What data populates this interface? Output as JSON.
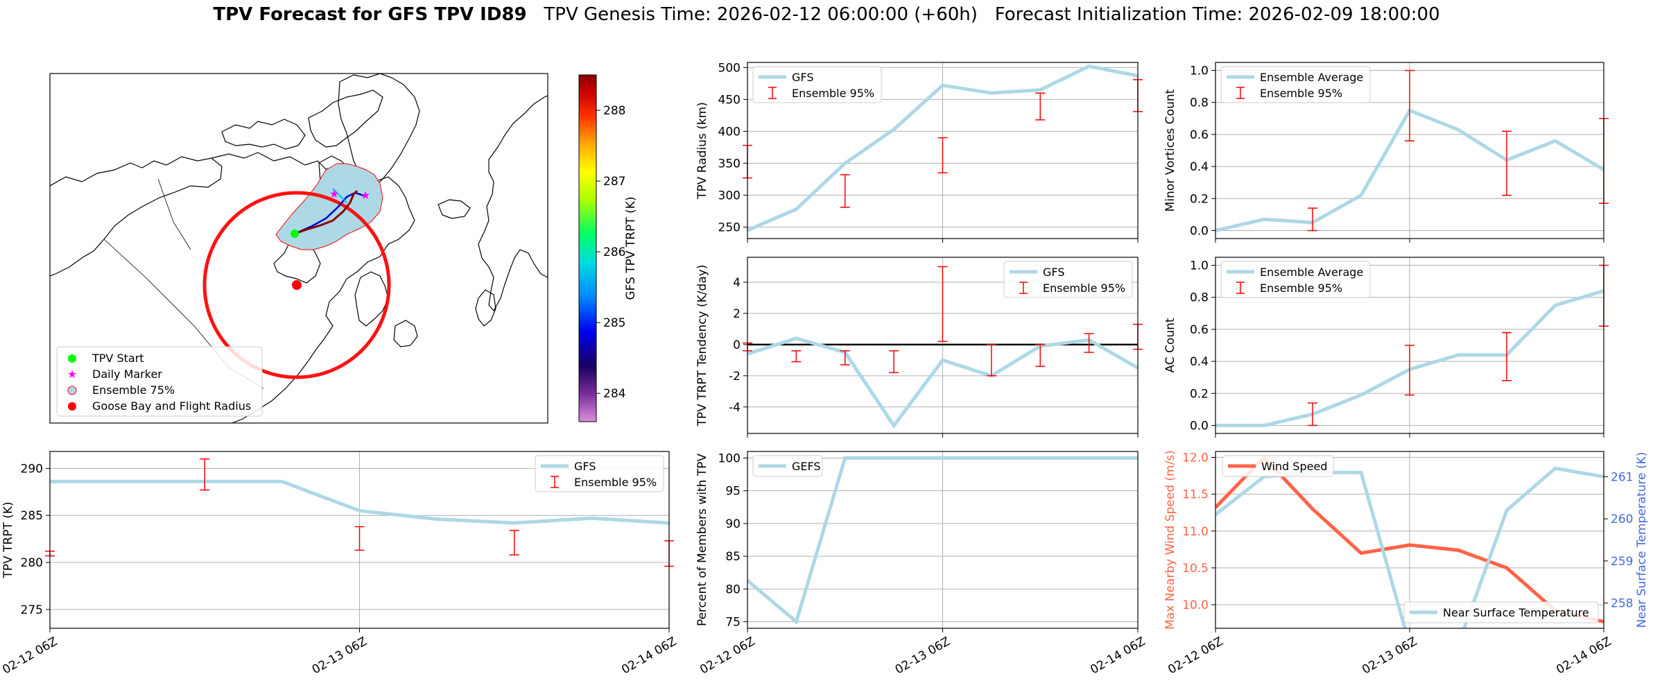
{
  "title": {
    "bold": "TPV Forecast for GFS TPV ID89",
    "genesis": "TPV Genesis Time: 2026-02-12 06:00:00 (+60h)",
    "init": "Forecast Initialization Time: 2026-02-09 18:00:00"
  },
  "colors": {
    "gfs_line": "#add8e6",
    "error_bar": "#ff0000",
    "wind": "#ff6347",
    "temp_axis": "#4169e1",
    "zero_line": "#000000"
  },
  "chart_data": [
    {
      "id": "map",
      "type": "scatter",
      "colorbar": {
        "label": "GFS TPV TRPT (K)",
        "ticks": [
          284,
          285,
          286,
          287,
          288
        ],
        "range": [
          283.6,
          288.5
        ]
      },
      "legend": [
        "TPV Start",
        "Daily Marker",
        "Ensemble 75%",
        "Goose Bay and Flight Radius"
      ],
      "legend_position": "lower-left"
    },
    {
      "id": "radius",
      "type": "line",
      "ylabel": "TPV Radius (km)",
      "ylim": [
        232,
        508
      ],
      "yticks": [
        250,
        300,
        350,
        400,
        450,
        500
      ],
      "x": [
        0,
        6,
        12,
        18,
        24,
        30,
        36,
        42,
        48
      ],
      "series": [
        {
          "name": "GFS",
          "values": [
            245,
            278,
            350,
            403,
            472,
            460,
            465,
            502,
            487
          ]
        }
      ],
      "errorbars": [
        {
          "x": 0,
          "low": 327,
          "high": 378
        },
        {
          "x": 12,
          "low": 281,
          "high": 332
        },
        {
          "x": 24,
          "low": 335,
          "high": 390
        },
        {
          "x": 36,
          "low": 418,
          "high": 460
        },
        {
          "x": 48,
          "low": 431,
          "high": 481
        }
      ],
      "legend": [
        "GFS",
        "Ensemble 95%"
      ],
      "legend_position": "top-left"
    },
    {
      "id": "minor",
      "type": "line",
      "ylabel": "Minor Vortices Count",
      "ylim": [
        -0.05,
        1.05
      ],
      "yticks": [
        0.0,
        0.2,
        0.4,
        0.6,
        0.8,
        1.0
      ],
      "x": [
        0,
        6,
        12,
        18,
        24,
        30,
        36,
        42,
        48
      ],
      "series": [
        {
          "name": "Ensemble Average",
          "values": [
            0.0,
            0.07,
            0.05,
            0.22,
            0.75,
            0.63,
            0.44,
            0.56,
            0.38
          ]
        }
      ],
      "errorbars": [
        {
          "x": 12,
          "low": 0.0,
          "high": 0.14
        },
        {
          "x": 24,
          "low": 0.56,
          "high": 1.0
        },
        {
          "x": 36,
          "low": 0.22,
          "high": 0.62
        },
        {
          "x": 48,
          "low": 0.17,
          "high": 0.7
        }
      ],
      "legend": [
        "Ensemble Average",
        "Ensemble 95%"
      ],
      "legend_position": "top-left"
    },
    {
      "id": "tendency",
      "type": "line",
      "ylabel": "TPV TRPT Tendency (K/day)",
      "ylim": [
        -5.7,
        5.6
      ],
      "yticks": [
        -4,
        -2,
        0,
        2,
        4
      ],
      "zero_line": true,
      "x": [
        0,
        6,
        12,
        18,
        24,
        30,
        36,
        42,
        48
      ],
      "series": [
        {
          "name": "GFS",
          "values": [
            -0.6,
            0.4,
            -0.5,
            -5.2,
            -1.0,
            -2.0,
            -0.1,
            0.3,
            -1.5
          ]
        }
      ],
      "errorbars": [
        {
          "x": 0,
          "low": -0.4,
          "high": 0.1
        },
        {
          "x": 6,
          "low": -1.1,
          "high": -0.4
        },
        {
          "x": 12,
          "low": -1.3,
          "high": -0.4
        },
        {
          "x": 18,
          "low": -1.8,
          "high": -0.4
        },
        {
          "x": 24,
          "low": 0.2,
          "high": 5.0
        },
        {
          "x": 30,
          "low": -2.0,
          "high": 0.0
        },
        {
          "x": 36,
          "low": -1.4,
          "high": 0.0
        },
        {
          "x": 42,
          "low": -0.5,
          "high": 0.7
        },
        {
          "x": 48,
          "low": -0.3,
          "high": 1.3
        }
      ],
      "legend": [
        "GFS",
        "Ensemble 95%"
      ],
      "legend_position": "top-right"
    },
    {
      "id": "ac",
      "type": "line",
      "ylabel": "AC Count",
      "ylim": [
        -0.05,
        1.05
      ],
      "yticks": [
        0.0,
        0.2,
        0.4,
        0.6,
        0.8,
        1.0
      ],
      "x": [
        0,
        6,
        12,
        18,
        24,
        30,
        36,
        42,
        48
      ],
      "series": [
        {
          "name": "Ensemble Average",
          "values": [
            0.0,
            0.0,
            0.07,
            0.19,
            0.35,
            0.44,
            0.44,
            0.75,
            0.84
          ]
        }
      ],
      "errorbars": [
        {
          "x": 12,
          "low": 0.0,
          "high": 0.14
        },
        {
          "x": 24,
          "low": 0.19,
          "high": 0.5
        },
        {
          "x": 36,
          "low": 0.28,
          "high": 0.58
        },
        {
          "x": 48,
          "low": 0.62,
          "high": 1.0
        }
      ],
      "legend": [
        "Ensemble Average",
        "Ensemble 95%"
      ],
      "legend_position": "top-left"
    },
    {
      "id": "trpt",
      "type": "line",
      "ylabel": "TPV TRPT (K)",
      "ylim": [
        273,
        291.8
      ],
      "yticks": [
        275,
        280,
        285,
        290
      ],
      "xticklabels": [
        "02-12 06Z",
        "02-13 06Z",
        "02-14 06Z"
      ],
      "x": [
        0,
        6,
        12,
        18,
        24,
        30,
        36,
        42,
        48
      ],
      "series": [
        {
          "name": "GFS",
          "values": [
            288.6,
            288.6,
            288.6,
            288.6,
            285.5,
            284.6,
            284.2,
            284.7,
            284.2
          ]
        }
      ],
      "errorbars": [
        {
          "x": 0,
          "low": 280.7,
          "high": 281.2
        },
        {
          "x": 12,
          "low": 287.7,
          "high": 291.0
        },
        {
          "x": 24,
          "low": 281.3,
          "high": 283.8
        },
        {
          "x": 36,
          "low": 280.8,
          "high": 283.4
        },
        {
          "x": 48,
          "low": 279.6,
          "high": 282.3
        }
      ],
      "legend": [
        "GFS",
        "Ensemble 95%"
      ],
      "legend_position": "top-right"
    },
    {
      "id": "percent",
      "type": "line",
      "ylabel": "Percent of Members with TPV",
      "ylim": [
        74,
        101
      ],
      "yticks": [
        75,
        80,
        85,
        90,
        95,
        100
      ],
      "xticklabels": [
        "02-12 06Z",
        "02-13 06Z",
        "02-14 06Z"
      ],
      "x": [
        0,
        6,
        12,
        18,
        24,
        30,
        36,
        42,
        48
      ],
      "series": [
        {
          "name": "GEFS",
          "values": [
            81.3,
            75.0,
            100,
            100,
            100,
            100,
            100,
            100,
            100
          ]
        }
      ],
      "legend": [
        "GEFS"
      ],
      "legend_position": "top-left"
    },
    {
      "id": "wind_temp",
      "type": "line",
      "ylabel": "Max Nearby Wind Speed (m/s)",
      "y2label": "Near Surface Temperature (K)",
      "ylim": [
        9.68,
        12.08
      ],
      "yticks": [
        10.0,
        10.5,
        11.0,
        11.5,
        12.0
      ],
      "y2lim": [
        257.4,
        261.6
      ],
      "y2ticks": [
        258,
        259,
        260,
        261
      ],
      "xticklabels": [
        "02-12 06Z",
        "02-13 06Z",
        "02-14 06Z"
      ],
      "x": [
        0,
        6,
        12,
        18,
        24,
        30,
        36,
        42,
        48
      ],
      "series": [
        {
          "name": "Wind Speed",
          "axis": "left",
          "values": [
            11.32,
            12.0,
            11.3,
            10.7,
            10.81,
            10.74,
            10.5,
            9.92,
            9.77
          ]
        },
        {
          "name": "Near Surface Temperature",
          "axis": "right",
          "values": [
            260.1,
            261.0,
            261.1,
            261.1,
            257.0,
            257.0,
            260.2,
            261.2,
            261.0
          ]
        }
      ],
      "legend": [
        "Wind Speed",
        "Near Surface Temperature"
      ]
    }
  ]
}
